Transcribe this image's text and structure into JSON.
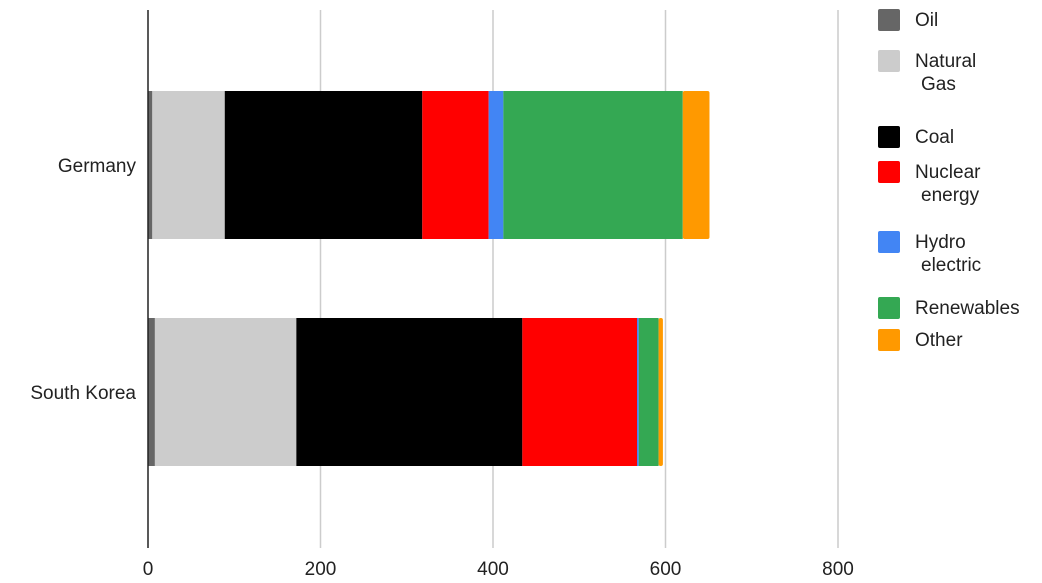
{
  "chart_data": {
    "type": "bar",
    "orientation": "horizontal",
    "stacked": true,
    "categories": [
      "Germany",
      "South Korea"
    ],
    "series": [
      {
        "name": "Oil",
        "label_lines": [
          "Oil"
        ],
        "color": "#666666",
        "values": [
          5,
          8
        ]
      },
      {
        "name": "Natural Gas",
        "label_lines": [
          "Natural",
          "Gas"
        ],
        "color": "#cccccc",
        "values": [
          84,
          164
        ]
      },
      {
        "name": "Coal",
        "label_lines": [
          "Coal"
        ],
        "color": "#000000",
        "values": [
          229,
          262
        ]
      },
      {
        "name": "Nuclear energy",
        "label_lines": [
          "Nuclear",
          "energy"
        ],
        "color": "#ff0000",
        "values": [
          77,
          133
        ]
      },
      {
        "name": "Hydro electric",
        "label_lines": [
          "Hydro",
          "electric"
        ],
        "color": "#4285f4",
        "values": [
          17,
          2
        ]
      },
      {
        "name": "Renewables",
        "label_lines": [
          "Renewables"
        ],
        "color": "#34a853",
        "values": [
          208,
          23
        ]
      },
      {
        "name": "Other",
        "label_lines": [
          "Other"
        ],
        "color": "#ff9900",
        "values": [
          31,
          5
        ]
      }
    ],
    "xlim": [
      0,
      800
    ],
    "xticks": [
      "0",
      "200",
      "400",
      "600",
      "800"
    ],
    "grid": "vertical",
    "legend_position": "right",
    "title": "",
    "xlabel": "",
    "ylabel": ""
  }
}
